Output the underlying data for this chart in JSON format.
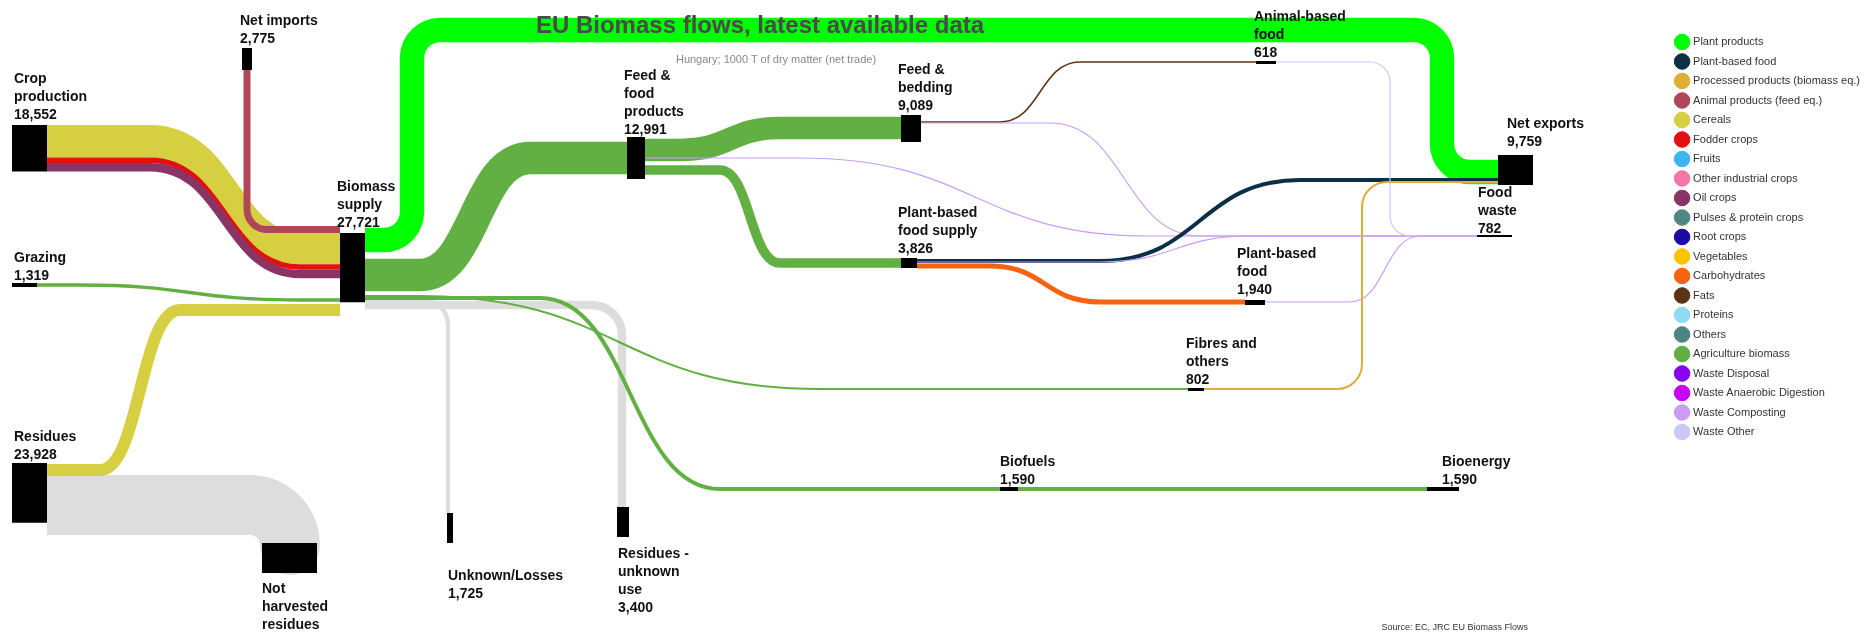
{
  "chart_data": {
    "type": "other",
    "title": "EU Biomass flows, latest available data",
    "subtitle": "Hungary; 1000 T of dry matter (net trade)",
    "categories": [
      "Crop production",
      "Net imports",
      "Grazing",
      "Residues",
      "Biomass supply",
      "Not harvested residues",
      "Unknown/Losses",
      "Residues - unknown use",
      "Feed & food products",
      "Feed & bedding",
      "Plant-based food supply",
      "Animal-based food",
      "Plant-based food",
      "Fibres and others",
      "Biofuels",
      "Bioenergy",
      "Net exports",
      "Food waste"
    ],
    "values": [
      18552,
      2775,
      1319,
      23928,
      27721,
      null,
      1725,
      3400,
      12991,
      9089,
      3826,
      618,
      1940,
      802,
      1590,
      1590,
      9759,
      782
    ],
    "series": [
      {
        "name": "Plant products",
        "color": "#00ff00",
        "values": [
          null,
          null,
          null,
          null,
          null,
          null,
          null,
          null,
          null,
          null,
          null,
          null,
          null,
          null,
          null,
          null,
          null,
          null
        ]
      },
      {
        "name": "Plant-based food",
        "color": "#0b2f45",
        "values": [
          null,
          null,
          null,
          null,
          null,
          null,
          null,
          null,
          null,
          null,
          null,
          null,
          null,
          null,
          null,
          null,
          null,
          null
        ]
      },
      {
        "name": "Processed products (biomass eq.)",
        "color": "#deae35",
        "values": [
          null,
          null,
          null,
          null,
          null,
          null,
          null,
          null,
          null,
          null,
          null,
          null,
          null,
          null,
          null,
          null,
          null,
          null
        ]
      },
      {
        "name": "Animal products (feed eq.)",
        "color": "#b04658",
        "values": [
          null,
          null,
          null,
          null,
          null,
          null,
          null,
          null,
          null,
          null,
          null,
          null,
          null,
          null,
          null,
          null,
          null,
          null
        ]
      },
      {
        "name": "Cereals",
        "color": "#d6cf42",
        "values": [
          null,
          null,
          null,
          null,
          null,
          null,
          null,
          null,
          null,
          null,
          null,
          null,
          null,
          null,
          null,
          null,
          null,
          null
        ]
      },
      {
        "name": "Fodder crops",
        "color": "#e21010",
        "values": [
          null,
          null,
          null,
          null,
          null,
          null,
          null,
          null,
          null,
          null,
          null,
          null,
          null,
          null,
          null,
          null,
          null,
          null
        ]
      },
      {
        "name": "Fruits",
        "color": "#3cb4f0",
        "values": [
          null,
          null,
          null,
          null,
          null,
          null,
          null,
          null,
          null,
          null,
          null,
          null,
          null,
          null,
          null,
          null,
          null,
          null
        ]
      },
      {
        "name": "Other industrial crops",
        "color": "#f576a8",
        "values": [
          null,
          null,
          null,
          null,
          null,
          null,
          null,
          null,
          null,
          null,
          null,
          null,
          null,
          null,
          null,
          null,
          null,
          null
        ]
      },
      {
        "name": "Oil crops",
        "color": "#8a3466",
        "values": [
          null,
          null,
          null,
          null,
          null,
          null,
          null,
          null,
          null,
          null,
          null,
          null,
          null,
          null,
          null,
          null,
          null,
          null
        ]
      },
      {
        "name": "Pulses & protein crops",
        "color": "#4f8686",
        "values": [
          null,
          null,
          null,
          null,
          null,
          null,
          null,
          null,
          null,
          null,
          null,
          null,
          null,
          null,
          null,
          null,
          null,
          null
        ]
      },
      {
        "name": "Root crops",
        "color": "#1c0aa6",
        "values": [
          null,
          null,
          null,
          null,
          null,
          null,
          null,
          null,
          null,
          null,
          null,
          null,
          null,
          null,
          null,
          null,
          null,
          null
        ]
      },
      {
        "name": "Vegetables",
        "color": "#fdc300",
        "values": [
          null,
          null,
          null,
          null,
          null,
          null,
          null,
          null,
          null,
          null,
          null,
          null,
          null,
          null,
          null,
          null,
          null,
          null
        ]
      },
      {
        "name": "Carbohydrates",
        "color": "#f26410",
        "values": [
          null,
          null,
          null,
          null,
          null,
          null,
          null,
          null,
          null,
          null,
          null,
          null,
          null,
          null,
          null,
          null,
          null,
          null
        ]
      },
      {
        "name": "Fats",
        "color": "#5c3415",
        "values": [
          null,
          null,
          null,
          null,
          null,
          null,
          null,
          null,
          null,
          null,
          null,
          null,
          null,
          null,
          null,
          null,
          null,
          null
        ]
      },
      {
        "name": "Proteins",
        "color": "#8fdcf5",
        "values": [
          null,
          null,
          null,
          null,
          null,
          null,
          null,
          null,
          null,
          null,
          null,
          null,
          null,
          null,
          null,
          null,
          null,
          null
        ]
      },
      {
        "name": "Others",
        "color": "#4d8585",
        "values": [
          null,
          null,
          null,
          null,
          null,
          null,
          null,
          null,
          null,
          null,
          null,
          null,
          null,
          null,
          null,
          null,
          null,
          null
        ]
      },
      {
        "name": "Agriculture biomass",
        "color": "#62b043",
        "values": [
          null,
          null,
          null,
          null,
          null,
          null,
          null,
          null,
          null,
          null,
          null,
          null,
          null,
          null,
          null,
          null,
          null,
          null
        ]
      },
      {
        "name": "Waste Disposal",
        "color": "#8a00f0",
        "values": [
          null,
          null,
          null,
          null,
          null,
          null,
          null,
          null,
          null,
          null,
          null,
          null,
          null,
          null,
          null,
          null,
          null,
          null
        ]
      },
      {
        "name": "Waste Anaerobic Digestion",
        "color": "#c800f5",
        "values": [
          null,
          null,
          null,
          null,
          null,
          null,
          null,
          null,
          null,
          null,
          null,
          null,
          null,
          null,
          null,
          null,
          null,
          null
        ]
      },
      {
        "name": "Waste Composting",
        "color": "#c99cf5",
        "values": [
          null,
          null,
          null,
          null,
          null,
          null,
          null,
          null,
          null,
          null,
          null,
          null,
          null,
          null,
          null,
          null,
          null,
          null
        ]
      },
      {
        "name": "Waste Other",
        "color": "#c8c8f8",
        "values": [
          null,
          null,
          null,
          null,
          null,
          null,
          null,
          null,
          null,
          null,
          null,
          null,
          null,
          null,
          null,
          null,
          null,
          null
        ]
      }
    ],
    "value_labels": [
      "18,552",
      "2,775",
      "1,319",
      "23,928",
      "27,721",
      null,
      "1,725",
      "3,400",
      "12,991",
      "9,089",
      "3,826",
      "618",
      "1,940",
      "802",
      "1,590",
      "1,590",
      "9,759",
      "782"
    ],
    "legend": "right",
    "annotations": [
      "Source: EC, JRC EU Biomass Flows"
    ]
  }
}
